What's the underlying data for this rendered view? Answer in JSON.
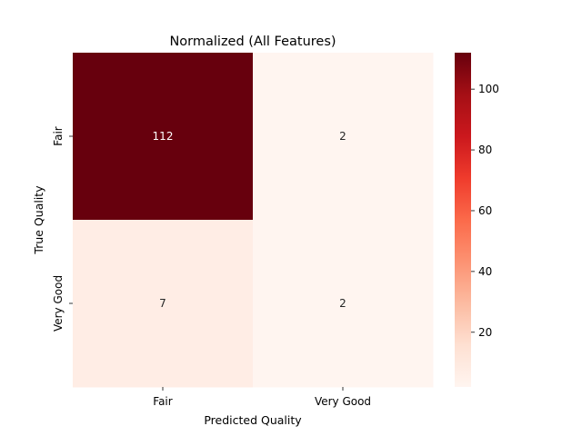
{
  "chart_data": {
    "type": "heatmap",
    "title": "Normalized (All Features)",
    "xlabel": "Predicted Quality",
    "ylabel": "True Quality",
    "x_categories": [
      "Fair",
      "Very Good"
    ],
    "y_categories": [
      "Fair",
      "Very Good"
    ],
    "values": [
      [
        112,
        2
      ],
      [
        7,
        2
      ]
    ],
    "cell_labels": [
      [
        "112",
        "2"
      ],
      [
        "7",
        "2"
      ]
    ],
    "colorbar": {
      "min": 2,
      "max": 112,
      "ticks": [
        20,
        40,
        60,
        80,
        100
      ],
      "tick_labels": [
        "20",
        "40",
        "60",
        "80",
        "100"
      ],
      "colormap": "Reds"
    }
  }
}
